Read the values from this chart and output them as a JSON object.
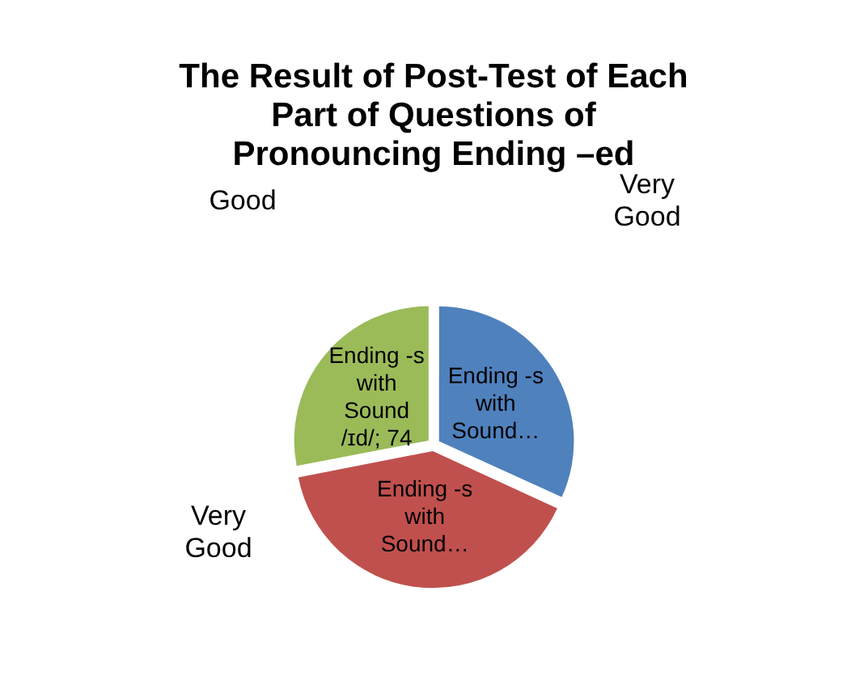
{
  "chart_data": {
    "type": "pie",
    "title": "The Result of Post-Test of Each Part of Questions of Pronouncing Ending –ed",
    "categories": [
      "Ending -s with Sound…",
      "Ending -s with Sound…",
      "Ending -s with Sound /ɪd/"
    ],
    "values": [
      84,
      106,
      74
    ],
    "value_labels": [
      null,
      null,
      "74"
    ],
    "colors": [
      "#4f81bd",
      "#c0504d",
      "#9bbb59"
    ],
    "annotations": [
      "Good",
      "Very Good",
      "Very Good"
    ],
    "legend": false
  }
}
